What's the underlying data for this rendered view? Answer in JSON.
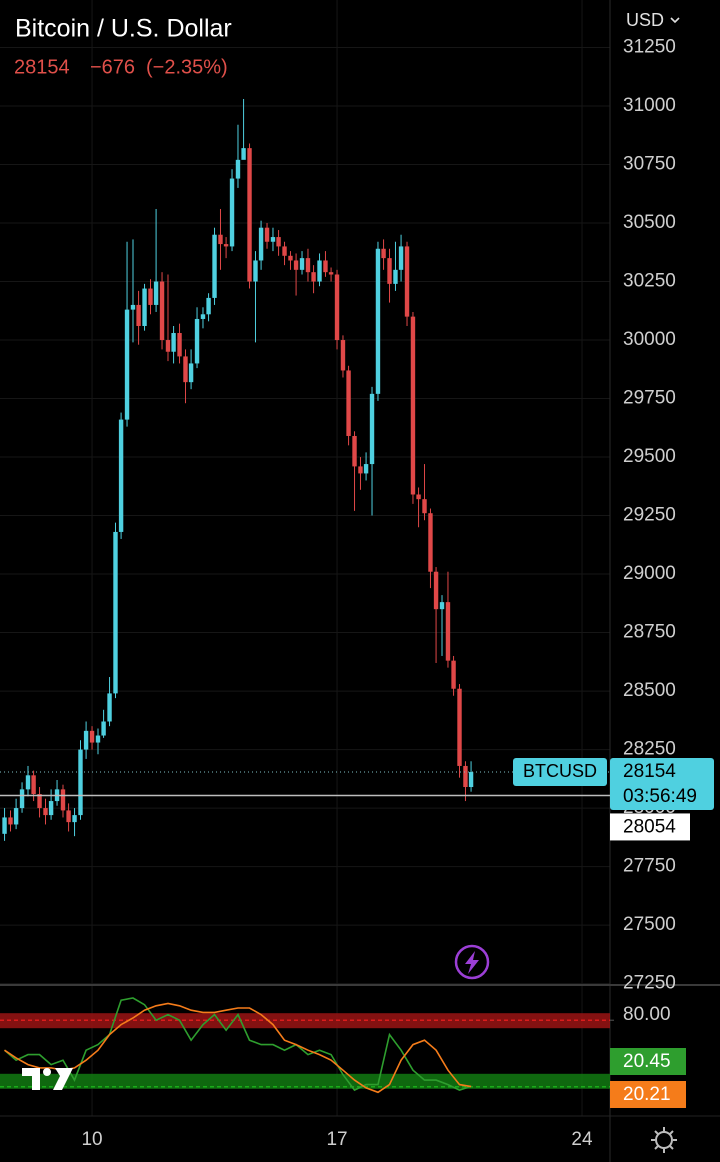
{
  "chart_data": [
    {
      "type": "candlestick",
      "title": "Bitcoin / U.S. Dollar",
      "price": 28154,
      "change": {
        "value": -676,
        "label": "−676"
      },
      "change_percent": {
        "value": -2.35,
        "label": "(−2.35%)"
      },
      "currency": "USD",
      "symbol": "BTCUSD",
      "countdown": "03:56:49",
      "reference_line": 28054,
      "up_color": "#4fd0e0",
      "down_color": "#e04848",
      "grid": true,
      "xlim": [
        7.37,
        24.8
      ],
      "xticks": [
        10,
        17,
        24
      ],
      "ylim": [
        27244,
        31453
      ],
      "yticks": [
        27250,
        27500,
        27750,
        28000,
        28250,
        28500,
        28750,
        29000,
        29250,
        29500,
        29750,
        30000,
        30250,
        30500,
        30750,
        31000,
        31250
      ],
      "x": [
        7.5,
        7.67,
        7.83,
        8,
        8.17,
        8.33,
        8.5,
        8.67,
        8.83,
        9,
        9.17,
        9.33,
        9.5,
        9.67,
        9.83,
        10,
        10.17,
        10.33,
        10.5,
        10.67,
        10.83,
        11,
        11.17,
        11.33,
        11.5,
        11.67,
        11.83,
        12,
        12.17,
        12.33,
        12.5,
        12.67,
        12.83,
        13,
        13.17,
        13.33,
        13.5,
        13.67,
        13.83,
        14,
        14.17,
        14.33,
        14.5,
        14.67,
        14.83,
        15,
        15.17,
        15.33,
        15.5,
        15.67,
        15.83,
        16,
        16.17,
        16.33,
        16.5,
        16.67,
        16.83,
        17,
        17.17,
        17.33,
        17.5,
        17.67,
        17.83,
        18,
        18.17,
        18.33,
        18.5,
        18.67,
        18.83,
        19,
        19.17,
        19.33,
        19.5,
        19.67,
        19.83,
        20,
        20.17,
        20.33,
        20.5,
        20.67,
        20.83
      ],
      "open": [
        27890,
        27960,
        27930,
        28000,
        28080,
        28140,
        28060,
        28000,
        27970,
        28030,
        28080,
        27990,
        27940,
        27970,
        28250,
        28330,
        28280,
        28310,
        28370,
        28490,
        29180,
        29660,
        30130,
        30150,
        30060,
        30220,
        30150,
        30250,
        30000,
        29950,
        30030,
        29930,
        29820,
        29900,
        30090,
        30110,
        30180,
        30450,
        30410,
        30400,
        30690,
        30770,
        30820,
        30250,
        30340,
        30480,
        30420,
        30440,
        30400,
        30360,
        30340,
        30300,
        30350,
        30290,
        30250,
        30340,
        30290,
        30280,
        30000,
        29870,
        29590,
        29460,
        29430,
        29470,
        29770,
        30390,
        30350,
        30240,
        30300,
        30400,
        30100,
        29340,
        29320,
        29260,
        29010,
        28850,
        28880,
        28630,
        28510,
        28180,
        28090
      ],
      "high": [
        28000,
        27990,
        28040,
        28110,
        28180,
        28160,
        28090,
        28040,
        28080,
        28120,
        28100,
        28020,
        28000,
        28290,
        28370,
        28350,
        28340,
        28420,
        28560,
        29220,
        29690,
        30420,
        30430,
        30210,
        30240,
        30260,
        30560,
        30290,
        30280,
        30060,
        30070,
        29960,
        29960,
        30140,
        30140,
        30200,
        30480,
        30560,
        30440,
        30730,
        30920,
        31030,
        30840,
        30380,
        30510,
        30500,
        30480,
        30470,
        30420,
        30380,
        30370,
        30380,
        30390,
        30320,
        30370,
        30380,
        30310,
        30300,
        30020,
        29890,
        29610,
        29500,
        29520,
        29800,
        30420,
        30430,
        30390,
        30420,
        30450,
        30420,
        30120,
        29370,
        29470,
        29280,
        29030,
        28910,
        29010,
        28650,
        28530,
        28200,
        28200
      ],
      "low": [
        27860,
        27900,
        27910,
        27980,
        28050,
        28030,
        27960,
        27930,
        27950,
        28010,
        27960,
        27900,
        27880,
        27950,
        28210,
        28250,
        28230,
        28300,
        28350,
        28470,
        29150,
        29630,
        29990,
        29980,
        30040,
        30110,
        30120,
        29960,
        29910,
        29900,
        29900,
        29730,
        29790,
        29880,
        30050,
        30080,
        30150,
        30300,
        30350,
        30380,
        30650,
        30780,
        30220,
        29990,
        30300,
        30390,
        30380,
        30360,
        30320,
        30300,
        30190,
        30280,
        30250,
        30200,
        30230,
        30270,
        30250,
        29960,
        29840,
        29550,
        29270,
        29360,
        29400,
        29250,
        29740,
        30300,
        30160,
        30210,
        30250,
        30060,
        29300,
        29200,
        29230,
        28940,
        28620,
        28650,
        28600,
        28480,
        28130,
        28030,
        28070
      ],
      "close": [
        27960,
        27930,
        28000,
        28080,
        28140,
        28060,
        28000,
        27970,
        28030,
        28080,
        27990,
        27940,
        27970,
        28250,
        28330,
        28280,
        28310,
        28370,
        28490,
        29180,
        29660,
        30130,
        30150,
        30060,
        30220,
        30150,
        30250,
        30000,
        29950,
        30030,
        29930,
        29820,
        29900,
        30090,
        30110,
        30180,
        30450,
        30410,
        30400,
        30690,
        30770,
        30820,
        30250,
        30340,
        30480,
        30420,
        30440,
        30400,
        30360,
        30340,
        30300,
        30350,
        30290,
        30250,
        30340,
        30290,
        30280,
        30000,
        29870,
        29590,
        29460,
        29430,
        29470,
        29770,
        30390,
        30350,
        30240,
        30300,
        30400,
        30100,
        29340,
        29320,
        29260,
        29010,
        28850,
        28880,
        28630,
        28510,
        28180,
        28090,
        28154
      ]
    },
    {
      "type": "line",
      "xlim": [
        7.37,
        24.8
      ],
      "ylim": [
        0,
        100
      ],
      "yticks": [
        {
          "value": 80,
          "label": "80.00"
        }
      ],
      "levels": [
        80,
        20
      ],
      "level_colors": [
        "#9b1414",
        "#127a12"
      ],
      "x": [
        7.5,
        7.83,
        8.17,
        8.5,
        8.83,
        9.17,
        9.5,
        9.83,
        10.17,
        10.5,
        10.83,
        11.17,
        11.5,
        11.83,
        12.17,
        12.5,
        12.83,
        13.17,
        13.5,
        13.83,
        14.17,
        14.5,
        14.83,
        15.17,
        15.5,
        15.83,
        16.17,
        16.5,
        16.83,
        17.17,
        17.5,
        17.83,
        18.17,
        18.5,
        18.83,
        19.17,
        19.5,
        19.83,
        20.17,
        20.5,
        20.83
      ],
      "series": [
        {
          "color": "#2e9e2e",
          "values": [
            53,
            44,
            49,
            49,
            40,
            44,
            26,
            53,
            58,
            67,
            98,
            100,
            94,
            80,
            85,
            80,
            62,
            76,
            85,
            71,
            85,
            62,
            58,
            58,
            53,
            58,
            49,
            53,
            49,
            31,
            17,
            22,
            22,
            67,
            53,
            35,
            26,
            26,
            22,
            17,
            20.45
          ]
        },
        {
          "color": "#f57c1a",
          "values": [
            53,
            46,
            40,
            37,
            37,
            35,
            37,
            44,
            53,
            67,
            76,
            82,
            89,
            93,
            95,
            93,
            89,
            87,
            87,
            89,
            91,
            91,
            85,
            76,
            62,
            58,
            53,
            49,
            44,
            35,
            26,
            19,
            15,
            22,
            44,
            58,
            62,
            53,
            35,
            22,
            20.21
          ]
        }
      ]
    }
  ]
}
